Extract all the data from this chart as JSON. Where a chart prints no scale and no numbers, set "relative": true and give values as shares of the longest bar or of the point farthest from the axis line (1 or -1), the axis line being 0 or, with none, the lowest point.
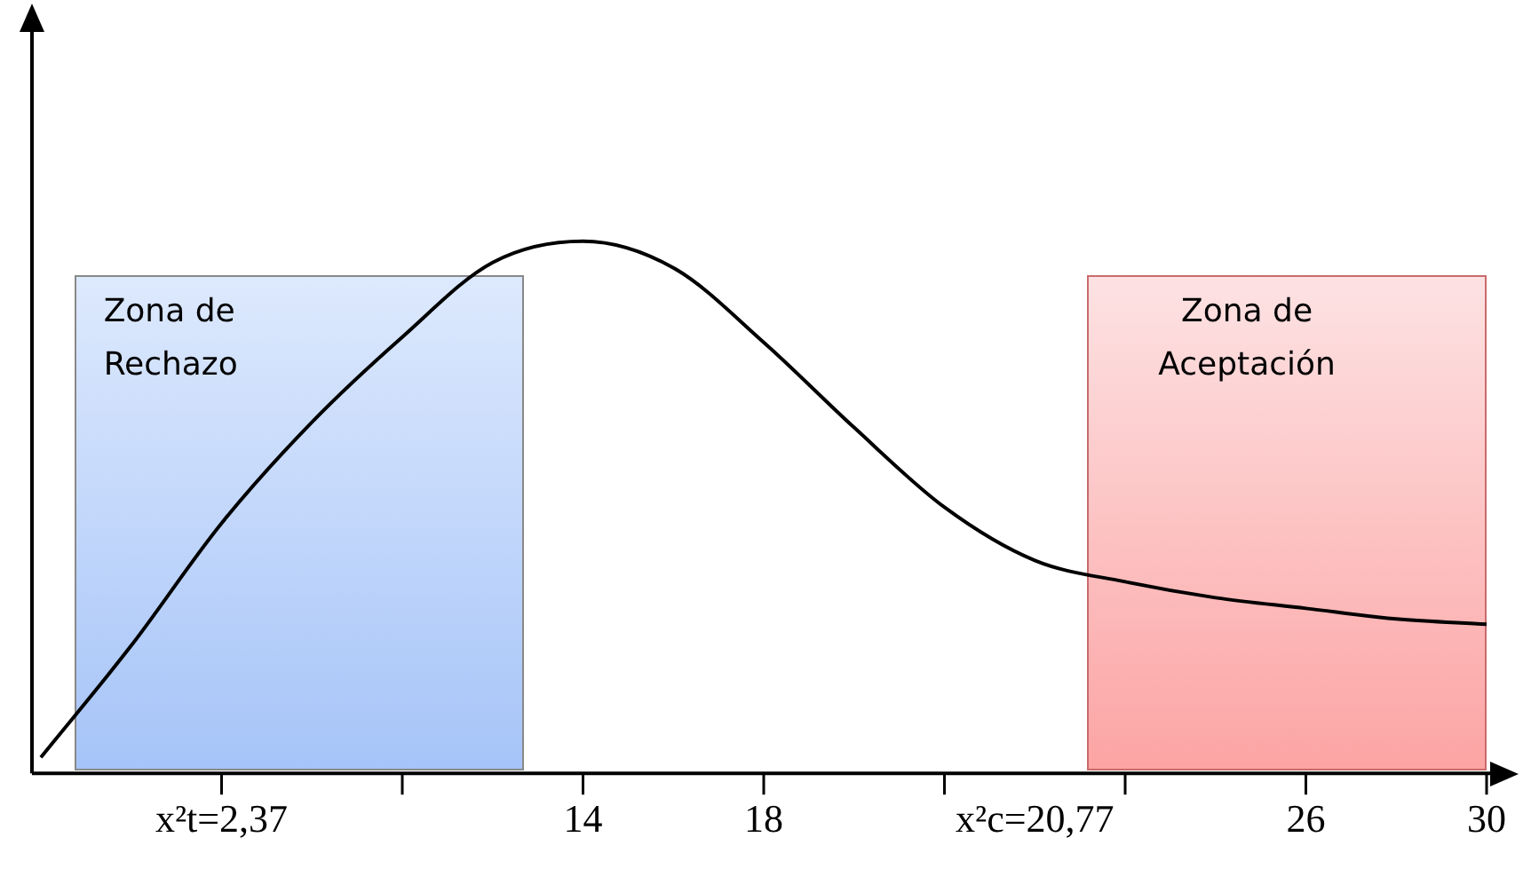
{
  "chart_data": {
    "type": "line",
    "relative": true,
    "categories": [
      null,
      null,
      "x²t=2,37",
      null,
      null,
      null,
      "14",
      null,
      "18",
      null,
      null,
      "x²c=20,77",
      null,
      null,
      "26",
      null,
      "30"
    ],
    "series": [
      {
        "color": "#000000",
        "values": [
          0.03,
          0.24,
          0.47,
          0.66,
          0.82,
          0.96,
          1.0,
          0.95,
          0.81,
          0.65,
          0.5,
          0.4,
          0.36,
          0.33,
          0.31,
          0.29,
          0.28
        ]
      }
    ],
    "annotations": [
      "Zona de\nRechazo",
      "Zona de\nAceptación"
    ],
    "grid": false,
    "legend": false,
    "marker": "none",
    "line_style": "solid"
  }
}
